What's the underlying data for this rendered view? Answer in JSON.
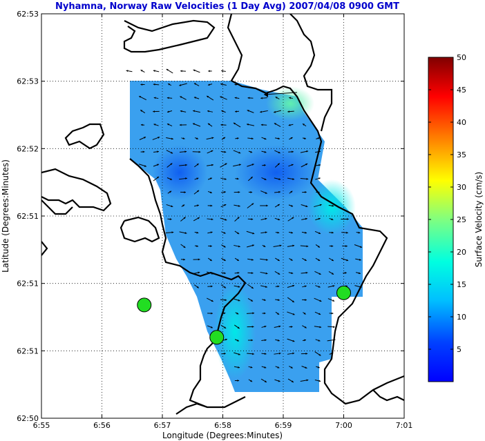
{
  "chart_data": {
    "type": "heatmap",
    "title": "Nyhamna, Norway Raw Velocities (1 Day Avg) 2007/04/08 0900 GMT",
    "xlabel": "Longitude (Degrees:Minutes)",
    "ylabel": "Latitude (Degrees:Minutes)",
    "x_tick_labels": [
      "6:55",
      "6:56",
      "6:57",
      "6:58",
      "6:59",
      "7:00",
      "7:01"
    ],
    "y_tick_labels": [
      "62:53",
      "62:53",
      "62:52",
      "62:51",
      "62:51",
      "62:51",
      "62:50"
    ],
    "colorbar": {
      "label": "Surface Velocity (cm/s)",
      "ticks": [
        "5",
        "10",
        "15",
        "20",
        "25",
        "30",
        "35",
        "40",
        "45",
        "50"
      ],
      "range": [
        0,
        50
      ],
      "colormap": "jet"
    },
    "grid": true,
    "sites": [
      {
        "lon_min": 56.7,
        "lat_frac": 0.28,
        "color": "#22dd22"
      },
      {
        "lon_min": 57.9,
        "lat_frac": 0.2,
        "color": "#22dd22"
      },
      {
        "lon_min": 60.0,
        "lat_frac": 0.31,
        "color": "#22dd22"
      }
    ]
  }
}
